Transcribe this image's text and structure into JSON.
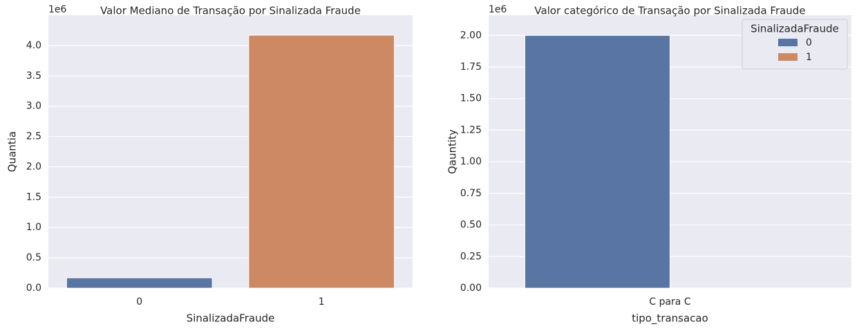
{
  "chart_data": [
    {
      "type": "bar",
      "title": "Valor Mediano de Transação por Sinalizada Fraude",
      "x_label": "SinalizadaFraude",
      "y_label": "Quantia",
      "y_offset_label": "1e6",
      "categories": [
        "0",
        "1"
      ],
      "series": [
        {
          "name": "SinalizadaFraude",
          "colors": [
            "#5875a4",
            "#cc8963"
          ],
          "values": [
            170000,
            4170000
          ]
        }
      ],
      "ylim": [
        0,
        4500000
      ],
      "yticks": [
        {
          "value": 0,
          "label": "0.0"
        },
        {
          "value": 500000,
          "label": "0.5"
        },
        {
          "value": 1000000,
          "label": "1.0"
        },
        {
          "value": 1500000,
          "label": "1.5"
        },
        {
          "value": 2000000,
          "label": "2.0"
        },
        {
          "value": 2500000,
          "label": "2.5"
        },
        {
          "value": 3000000,
          "label": "3.0"
        },
        {
          "value": 3500000,
          "label": "3.5"
        },
        {
          "value": 4000000,
          "label": "4.0"
        }
      ],
      "grid": true
    },
    {
      "type": "grouped_bar",
      "title": "Valor categórico de Transação por Sinalizada Fraude",
      "x_label": "tipo_transacao",
      "y_label": "Qauntity",
      "y_offset_label": "1e6",
      "categories": [
        "C para C"
      ],
      "legend_title": "SinalizadaFraude",
      "legend": "upper right",
      "series": [
        {
          "name": "0",
          "color": "#5875a4",
          "values": [
            2000000
          ]
        },
        {
          "name": "1",
          "color": "#cc8963",
          "values": [
            null
          ]
        }
      ],
      "ylim": [
        0,
        2160000
      ],
      "yticks": [
        {
          "value": 0,
          "label": "0.00"
        },
        {
          "value": 250000,
          "label": "0.25"
        },
        {
          "value": 500000,
          "label": "0.50"
        },
        {
          "value": 750000,
          "label": "0.75"
        },
        {
          "value": 1000000,
          "label": "1.00"
        },
        {
          "value": 1250000,
          "label": "1.25"
        },
        {
          "value": 1500000,
          "label": "1.50"
        },
        {
          "value": 1750000,
          "label": "1.75"
        },
        {
          "value": 2000000,
          "label": "2.00"
        }
      ],
      "grid": true
    }
  ]
}
